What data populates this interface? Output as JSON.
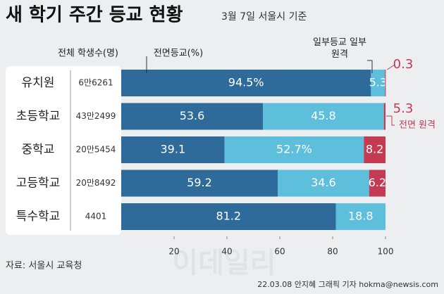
{
  "chart_data": {
    "type": "stacked-bar-horizontal",
    "title": "새 학기 주간 등교 현황",
    "subtitle": "3월 7일 서울시 기준",
    "count_header": "전체 학생수(명)",
    "categories": [
      "유치원",
      "초등학교",
      "중학교",
      "고등학교",
      "특수학교"
    ],
    "student_counts": [
      "6만6261",
      "43만2499",
      "20만5454",
      "20만8492",
      "4401"
    ],
    "series": [
      {
        "name": "전면등교(%)",
        "color": "#2e6b9a",
        "values": [
          94.5,
          53.6,
          39.1,
          59.2,
          81.2
        ],
        "value_labels": [
          "94.5%",
          "53.6",
          "39.1",
          "59.2",
          "81.2"
        ]
      },
      {
        "name": "일부등교 일부원격",
        "color": "#5dbfdc",
        "values": [
          5.3,
          45.8,
          52.7,
          34.6,
          18.8
        ],
        "value_labels": [
          "5.3",
          "45.8",
          "52.7%",
          "34.6",
          "18.8"
        ]
      },
      {
        "name": "전면 원격",
        "color": "#c33a52",
        "values": [
          0.3,
          0.6,
          8.2,
          6.2,
          null
        ],
        "value_labels": [
          "0.3",
          null,
          "8.2",
          "6.2",
          null
        ]
      }
    ],
    "annotations": [
      "5.3"
    ],
    "xlim": [
      0,
      100
    ],
    "xticks": [
      20,
      40,
      60,
      80,
      100
    ],
    "source": "자료: 서울시 교육청",
    "credit": "22.03.08 안지혜 그래픽 기자 hokma@newsis.com",
    "watermark": "이데일리"
  }
}
